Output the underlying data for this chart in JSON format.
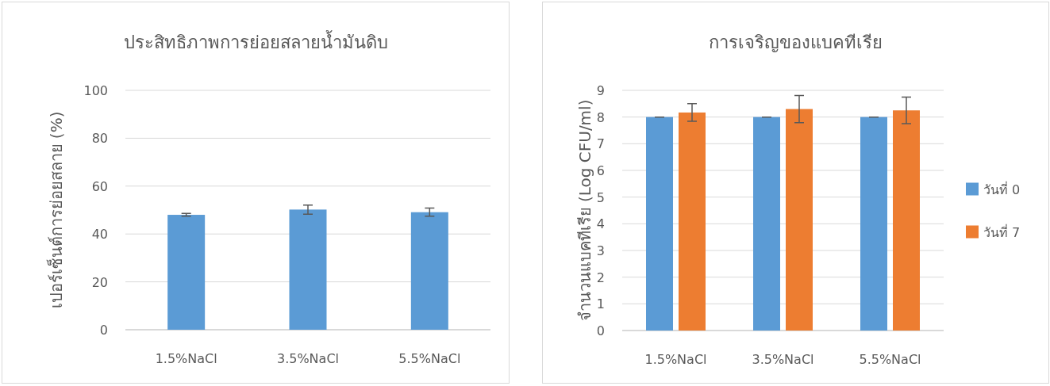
{
  "chart_data": [
    {
      "type": "bar",
      "title": "ประสิทธิภาพการย่อยสลายน้ำมันดิบ",
      "ylabel": "เปอร์เซ็นต์การย่อยสลาย (%)",
      "categories": [
        "1.5%NaCl",
        "3.5%NaCl",
        "5.5%NaCl"
      ],
      "series": [
        {
          "color": "#5b9bd5",
          "values": [
            48.0,
            50.2,
            49.1
          ],
          "errors": [
            0.6,
            1.9,
            1.7
          ]
        }
      ],
      "ylim": [
        0,
        100
      ],
      "yticks": [
        0,
        20,
        40,
        60,
        80,
        100
      ],
      "grid": "y",
      "legend": false
    },
    {
      "type": "bar",
      "title": "การเจริญของแบคทีเรีย",
      "ylabel": "จำนวนแบคทีเรีย (Log CFU/ml)",
      "categories": [
        "1.5%NaCl",
        "3.5%NaCl",
        "5.5%NaCl"
      ],
      "series": [
        {
          "name": "วันที่ 0",
          "color": "#5b9bd5",
          "values": [
            8.0,
            8.0,
            8.0
          ],
          "errors": [
            0,
            0,
            0
          ]
        },
        {
          "name": "วันที่ 7",
          "color": "#ed7d31",
          "values": [
            8.17,
            8.3,
            8.25
          ],
          "errors": [
            0.33,
            0.51,
            0.5
          ]
        }
      ],
      "ylim": [
        0,
        9
      ],
      "yticks": [
        0,
        1,
        2,
        3,
        4,
        5,
        6,
        7,
        8,
        9
      ],
      "grid": "y",
      "legend": "right"
    }
  ]
}
